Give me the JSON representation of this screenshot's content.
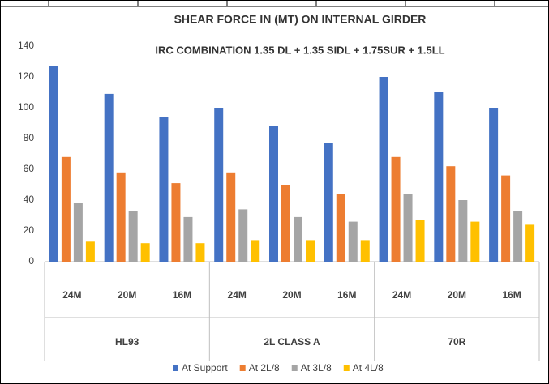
{
  "chart_data": {
    "type": "bar",
    "title": "SHEAR FORCE IN (MT) ON INTERNAL GIRDER",
    "subtitle": "IRC COMBINATION 1.35 DL + 1.35 SIDL + 1.75SUR + 1.5LL",
    "categories": [
      "24M",
      "20M",
      "16M",
      "24M",
      "20M",
      "16M",
      "24M",
      "20M",
      "16M"
    ],
    "groups": [
      "HL93",
      "2L CLASS A",
      "70R"
    ],
    "series": [
      {
        "name": "At Support",
        "color": "#4472c4",
        "values": [
          127,
          109,
          94,
          100,
          88,
          77,
          120,
          110,
          100
        ]
      },
      {
        "name": "At 2L/8",
        "color": "#ed7d31",
        "values": [
          68,
          58,
          51,
          58,
          50,
          44,
          68,
          62,
          56
        ]
      },
      {
        "name": "At 3L/8",
        "color": "#a5a5a5",
        "values": [
          38,
          33,
          29,
          34,
          29,
          26,
          44,
          40,
          33
        ]
      },
      {
        "name": "At 4L/8",
        "color": "#ffc000",
        "values": [
          13,
          12,
          12,
          14,
          14,
          14,
          27,
          26,
          24
        ]
      }
    ],
    "ylim": [
      0,
      140
    ],
    "yticks": [
      0,
      20,
      40,
      60,
      80,
      100,
      120,
      140
    ],
    "grid": false,
    "legend": "bottom"
  }
}
